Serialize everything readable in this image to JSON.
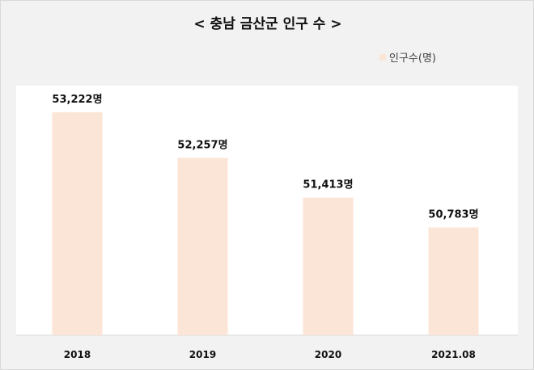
{
  "colors": {
    "background": "#f2f2f2",
    "plot_area": "#ffffff",
    "bar": "#fbe5d6",
    "axis": "#d9d9d9"
  },
  "chart_data": {
    "type": "bar",
    "title": "< 충남 금산군 인구 수 >",
    "categories": [
      "2018",
      "2019",
      "2020",
      "2021.08"
    ],
    "series": [
      {
        "name": "인구수(명)",
        "values": [
          53222,
          52257,
          51413,
          50783
        ],
        "labels": [
          "53,222명",
          "52,257명",
          "51,413명",
          "50,783명"
        ]
      }
    ],
    "legend_position": "top-right",
    "grid": false,
    "ylim": [
      48500,
      53700
    ]
  }
}
